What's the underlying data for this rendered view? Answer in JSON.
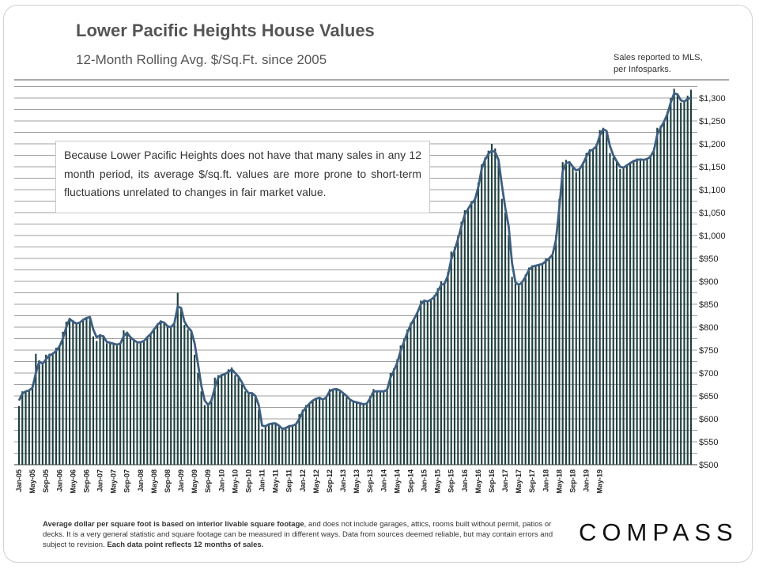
{
  "title": "Lower Pacific Heights House Values",
  "subtitle": "12-Month Rolling Avg. $/Sq.Ft. since 2005",
  "source_line1": "Sales reported to MLS,",
  "source_line2": "per Infosparks.",
  "note": "Because Lower Pacific Heights does not have that many sales in any 12 month period, its average $/sq.ft. values are more prone to short-term fluctuations unrelated to changes in fair market value.",
  "footer": {
    "bold1": "Average dollar per square foot is based on interior livable square footage",
    "text1": ", and does not include garages, attics, rooms built without permit, patios or decks. It is a very general statistic and square footage can be measured in different ways. Data from sources deemed reliable, but may contain errors and subject to revision. ",
    "bold2": "Each data point reflects 12 months of sales."
  },
  "logo": "COMPASS",
  "colors": {
    "bar": "#1f3f3f",
    "line": "#3d5f82",
    "grid": "#7f7f7f"
  },
  "chart_data": {
    "type": "bar",
    "title": "Lower Pacific Heights House Values",
    "subtitle": "12-Month Rolling Avg. $/Sq.Ft. since 2005",
    "x_axis": "monthly, Jan-05 to May-19",
    "tick_labels": [
      "Jan-05",
      "May-05",
      "Sep-05",
      "Jan-06",
      "May-06",
      "Sep-06",
      "Jan-07",
      "May-07",
      "Sep-07",
      "Jan-08",
      "May-08",
      "Sep-08",
      "Jan-09",
      "May-09",
      "Sep-09",
      "Jan-10",
      "May-10",
      "Sep-10",
      "Jan-11",
      "May-11",
      "Sep-11",
      "Jan-12",
      "May-12",
      "Sep-12",
      "Jan-13",
      "May-13",
      "Sep-13",
      "Jan-14",
      "May-14",
      "Sep-14",
      "Jan-15",
      "May-15",
      "Sep-15",
      "Jan-16",
      "May-16",
      "Sep-16",
      "Jan-17",
      "May-17",
      "Sep-17",
      "Jan-18",
      "May-18",
      "Sep-18",
      "Jan-19",
      "May-19"
    ],
    "y_ticks": [
      "$500",
      "$550",
      "$600",
      "$650",
      "$700",
      "$750",
      "$800",
      "$850",
      "$900",
      "$950",
      "$1,000",
      "$1,050",
      "$1,100",
      "$1,150",
      "$1,200",
      "$1,250",
      "$1,300"
    ],
    "ylim": [
      500,
      1300
    ],
    "y_axis_side": "right",
    "grid": true,
    "series": [
      {
        "type": "bar",
        "values": [
          628,
          660,
          660,
          664,
          675,
          742,
          728,
          718,
          740,
          742,
          741,
          755,
          760,
          790,
          812,
          820,
          815,
          808,
          812,
          818,
          820,
          822,
          780,
          770,
          785,
          782,
          765,
          768,
          765,
          760,
          765,
          793,
          790,
          775,
          770,
          765,
          768,
          770,
          780,
          785,
          798,
          808,
          815,
          810,
          800,
          800,
          810,
          875,
          840,
          805,
          795,
          790,
          740,
          700,
          660,
          630,
          630,
          645,
          690,
          695,
          698,
          700,
          708,
          712,
          695,
          690,
          675,
          660,
          655,
          658,
          650,
          620,
          578,
          585,
          590,
          590,
          592,
          585,
          578,
          582,
          585,
          585,
          590,
          610,
          620,
          630,
          635,
          640,
          645,
          648,
          640,
          648,
          665,
          665,
          667,
          660,
          655,
          648,
          640,
          638,
          636,
          635,
          632,
          634,
          650,
          665,
          660,
          662,
          660,
          665,
          700,
          710,
          730,
          760,
          775,
          795,
          810,
          820,
          835,
          858,
          860,
          856,
          862,
          870,
          885,
          900,
          895,
          920,
          965,
          975,
          1000,
          1030,
          1055,
          1060,
          1075,
          1080,
          1115,
          1155,
          1170,
          1185,
          1200,
          1190,
          1160,
          1080,
          1050,
          1000,
          910,
          895,
          890,
          900,
          915,
          930,
          935,
          935,
          938,
          940,
          950,
          952,
          960,
          1000,
          1080,
          1160,
          1165,
          1162,
          1148,
          1138,
          1145,
          1160,
          1180,
          1188,
          1190,
          1200,
          1230,
          1235,
          1225,
          1180,
          1170,
          1160,
          1145,
          1148,
          1155,
          1160,
          1165,
          1168,
          1168,
          1165,
          1168,
          1175,
          1190,
          1235,
          1240,
          1250,
          1270,
          1300,
          1320,
          1308,
          1290,
          1295,
          1305,
          1318
        ]
      },
      {
        "type": "line",
        "values": [
          640,
          655,
          660,
          662,
          668,
          700,
          725,
          720,
          730,
          738,
          742,
          748,
          758,
          775,
          800,
          818,
          812,
          808,
          810,
          816,
          820,
          822,
          795,
          778,
          782,
          780,
          768,
          766,
          764,
          762,
          764,
          780,
          788,
          778,
          772,
          767,
          767,
          770,
          778,
          785,
          795,
          805,
          812,
          810,
          802,
          800,
          808,
          845,
          842,
          812,
          800,
          792,
          765,
          720,
          672,
          640,
          630,
          640,
          668,
          690,
          695,
          698,
          702,
          708,
          700,
          692,
          680,
          665,
          656,
          656,
          650,
          630,
          585,
          584,
          588,
          590,
          590,
          585,
          578,
          580,
          584,
          585,
          588,
          600,
          615,
          625,
          633,
          640,
          644,
          646,
          642,
          647,
          660,
          664,
          665,
          662,
          656,
          650,
          642,
          638,
          636,
          634,
          632,
          633,
          645,
          660,
          660,
          660,
          660,
          663,
          690,
          705,
          722,
          748,
          768,
          788,
          805,
          818,
          832,
          850,
          858,
          856,
          860,
          866,
          878,
          892,
          895,
          912,
          948,
          968,
          992,
          1020,
          1045,
          1058,
          1070,
          1078,
          1105,
          1145,
          1165,
          1178,
          1185,
          1182,
          1165,
          1110,
          1060,
          1020,
          940,
          898,
          892,
          898,
          910,
          925,
          932,
          934,
          936,
          938,
          944,
          950,
          958,
          990,
          1060,
          1140,
          1158,
          1160,
          1150,
          1142,
          1145,
          1156,
          1172,
          1184,
          1188,
          1195,
          1218,
          1232,
          1228,
          1195,
          1175,
          1162,
          1150,
          1148,
          1153,
          1158,
          1162,
          1165,
          1166,
          1165,
          1167,
          1172,
          1185,
          1220,
          1235,
          1248,
          1265,
          1290,
          1310,
          1308,
          1295,
          1292,
          1298,
          1300
        ]
      }
    ]
  }
}
